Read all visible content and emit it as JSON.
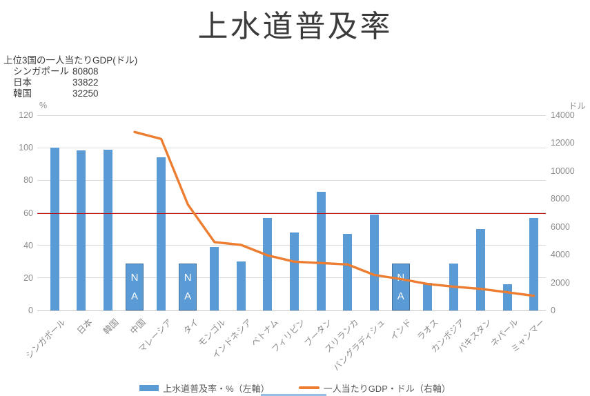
{
  "title": "上水道普及率",
  "annotation": {
    "heading": "上位3国の一人当たりGDP(ドル)",
    "rows": [
      {
        "label": "シンガポール",
        "value": "80808"
      },
      {
        "label": "日本",
        "value": "33822"
      },
      {
        "label": "韓国",
        "value": "32250"
      }
    ]
  },
  "axes": {
    "left": {
      "unit": "%",
      "ticks": [
        0,
        20,
        40,
        60,
        80,
        100,
        120
      ],
      "max": 120
    },
    "right": {
      "unit": "ドル",
      "ticks": [
        0,
        2000,
        4000,
        6000,
        8000,
        10000,
        12000,
        14000
      ],
      "max": 14000
    }
  },
  "legend": [
    {
      "type": "bar",
      "label": "上水道普及率・%（左軸）",
      "color": "#5b9bd5"
    },
    {
      "type": "line",
      "label": "一人当たりGDP・ドル（右軸）",
      "color": "#ed7d31"
    }
  ],
  "na_label": "NA",
  "colors": {
    "bar": "#5b9bd5",
    "na_border": "#41719c",
    "line": "#ed7d31",
    "reference_line": "#c00000",
    "grid": "#d9d9d9"
  },
  "chart_data": {
    "type": "bar+line combo",
    "title": "上水道普及率",
    "categories": [
      "シンガポール",
      "日本",
      "韓国",
      "中国",
      "マレーシア",
      "タイ",
      "モンゴル",
      "インドネシア",
      "ベトナム",
      "フィリピン",
      "ブータン",
      "スリランカ",
      "バングラディシュ",
      "インド",
      "ラオス",
      "カンボジア",
      "パキスタン",
      "ネパール",
      "ミャンマー"
    ],
    "series": [
      {
        "name": "上水道普及率・%（左軸）",
        "type": "bar",
        "axis": "left",
        "values": [
          100,
          98.5,
          99,
          null,
          94,
          null,
          39,
          30,
          57,
          48,
          73,
          47,
          59,
          null,
          17,
          29,
          50,
          16,
          57
        ],
        "na_indices": [
          3,
          5,
          13
        ],
        "na_bar_height_pct": 29
      },
      {
        "name": "一人当たりGDP・ドル（右軸）",
        "type": "line",
        "axis": "right",
        "x_start_index": 3,
        "values": [
          12800,
          12300,
          7600,
          4900,
          4700,
          3950,
          3500,
          3400,
          3300,
          2550,
          2250,
          1900,
          1700,
          1550,
          1300,
          1050
        ]
      }
    ],
    "reference_line": {
      "axis": "left",
      "value": 60,
      "equivalent_right_axis_value": 7000
    },
    "left_axis_range": [
      0,
      120
    ],
    "right_axis_range": [
      0,
      14000
    ],
    "grid": true,
    "legend_position": "bottom"
  }
}
